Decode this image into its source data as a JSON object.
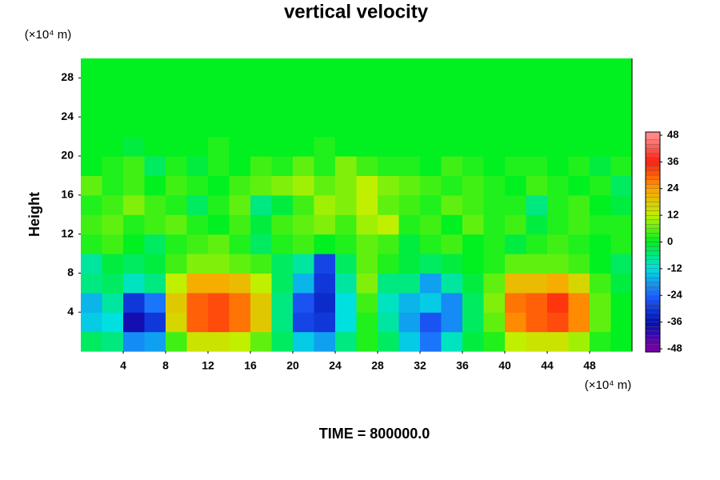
{
  "chart_data": {
    "type": "heatmap",
    "title": "vertical velocity",
    "y_label": "Height",
    "y_unit": "(×10⁴ m)",
    "x_unit": "(×10⁴ m)",
    "footer": "TIME = 800000.0",
    "x": [
      1,
      3,
      5,
      7,
      9,
      11,
      13,
      15,
      17,
      19,
      21,
      23,
      25,
      27,
      29,
      31,
      33,
      35,
      37,
      39,
      41,
      43,
      45,
      47,
      49,
      51
    ],
    "y": [
      1,
      3,
      5,
      7,
      9,
      11,
      13,
      15,
      17,
      19,
      21,
      23,
      25,
      27,
      29
    ],
    "z": [
      [
        -4,
        -6,
        -20,
        -18,
        4,
        14,
        14,
        12,
        6,
        -4,
        -14,
        -18,
        -6,
        2,
        -4,
        -14,
        -22,
        -10,
        -2,
        2,
        12,
        14,
        14,
        10,
        2,
        0
      ],
      [
        -14,
        -12,
        -38,
        -30,
        16,
        30,
        32,
        28,
        18,
        -6,
        -28,
        -30,
        -12,
        2,
        -8,
        -18,
        -26,
        -20,
        -4,
        6,
        26,
        30,
        32,
        26,
        6,
        0
      ],
      [
        -16,
        -8,
        -30,
        -22,
        18,
        30,
        32,
        28,
        18,
        -6,
        -26,
        -32,
        -12,
        4,
        -10,
        -16,
        -14,
        -20,
        -4,
        8,
        28,
        30,
        34,
        26,
        6,
        0
      ],
      [
        -6,
        -4,
        -10,
        -6,
        12,
        22,
        22,
        20,
        12,
        -4,
        -16,
        -30,
        -8,
        8,
        -6,
        -6,
        -18,
        -8,
        -2,
        6,
        20,
        20,
        22,
        16,
        4,
        -2
      ],
      [
        -8,
        -2,
        -4,
        -2,
        4,
        8,
        8,
        6,
        4,
        -4,
        -8,
        -28,
        -4,
        6,
        2,
        -2,
        -4,
        -2,
        0,
        2,
        6,
        6,
        6,
        4,
        0,
        -4
      ],
      [
        2,
        4,
        0,
        -4,
        2,
        4,
        6,
        2,
        -4,
        2,
        4,
        0,
        2,
        6,
        4,
        -2,
        2,
        4,
        0,
        2,
        -2,
        2,
        4,
        2,
        0,
        2
      ],
      [
        4,
        6,
        2,
        4,
        6,
        2,
        0,
        4,
        -2,
        4,
        6,
        8,
        4,
        10,
        12,
        2,
        4,
        0,
        6,
        2,
        4,
        -2,
        2,
        4,
        2,
        2
      ],
      [
        2,
        4,
        8,
        4,
        2,
        -4,
        2,
        6,
        -6,
        -2,
        4,
        10,
        8,
        12,
        6,
        4,
        2,
        6,
        4,
        2,
        2,
        -6,
        2,
        4,
        0,
        -2
      ],
      [
        6,
        2,
        4,
        0,
        4,
        2,
        0,
        4,
        6,
        8,
        10,
        6,
        8,
        12,
        8,
        6,
        4,
        2,
        4,
        2,
        0,
        4,
        2,
        0,
        2,
        -4
      ],
      [
        0,
        2,
        4,
        -4,
        2,
        -2,
        2,
        0,
        4,
        2,
        6,
        2,
        8,
        4,
        2,
        2,
        0,
        4,
        2,
        0,
        2,
        2,
        0,
        2,
        -2,
        2
      ],
      [
        0,
        0,
        -2,
        0,
        0,
        0,
        2,
        0,
        0,
        0,
        0,
        2,
        0,
        0,
        0,
        0,
        0,
        0,
        0,
        0,
        0,
        0,
        0,
        0,
        0,
        0
      ],
      [
        0,
        0,
        0,
        0,
        0,
        0,
        0,
        0,
        0,
        0,
        0,
        0,
        0,
        0,
        0,
        0,
        0,
        0,
        0,
        0,
        0,
        0,
        0,
        0,
        0,
        0
      ],
      [
        0,
        0,
        0,
        0,
        0,
        0,
        0,
        0,
        0,
        0,
        0,
        0,
        0,
        0,
        0,
        0,
        0,
        0,
        0,
        0,
        0,
        0,
        0,
        0,
        0,
        0
      ],
      [
        0,
        0,
        0,
        0,
        0,
        0,
        0,
        0,
        0,
        0,
        0,
        0,
        0,
        0,
        0,
        0,
        0,
        0,
        0,
        0,
        0,
        0,
        0,
        0,
        0,
        0
      ],
      [
        0,
        0,
        0,
        0,
        0,
        0,
        0,
        0,
        0,
        0,
        0,
        0,
        0,
        0,
        0,
        0,
        0,
        0,
        0,
        0,
        0,
        0,
        0,
        0,
        0,
        0
      ]
    ],
    "xlim": [
      0,
      52
    ],
    "ylim": [
      0,
      30
    ],
    "xticks": [
      4,
      8,
      12,
      16,
      20,
      24,
      28,
      32,
      36,
      40,
      44,
      48
    ],
    "yticks": [
      4,
      8,
      12,
      16,
      20,
      24,
      28
    ],
    "colorbar_ticks": [
      -48,
      -36,
      -24,
      -12,
      0,
      12,
      24,
      36,
      48
    ],
    "colors": [
      "#7a00a8",
      "#0010b0",
      "#2060ff",
      "#00e0e0",
      "#00f020",
      "#c0f000",
      "#ffa000",
      "#ff2010",
      "#ff9090"
    ]
  }
}
